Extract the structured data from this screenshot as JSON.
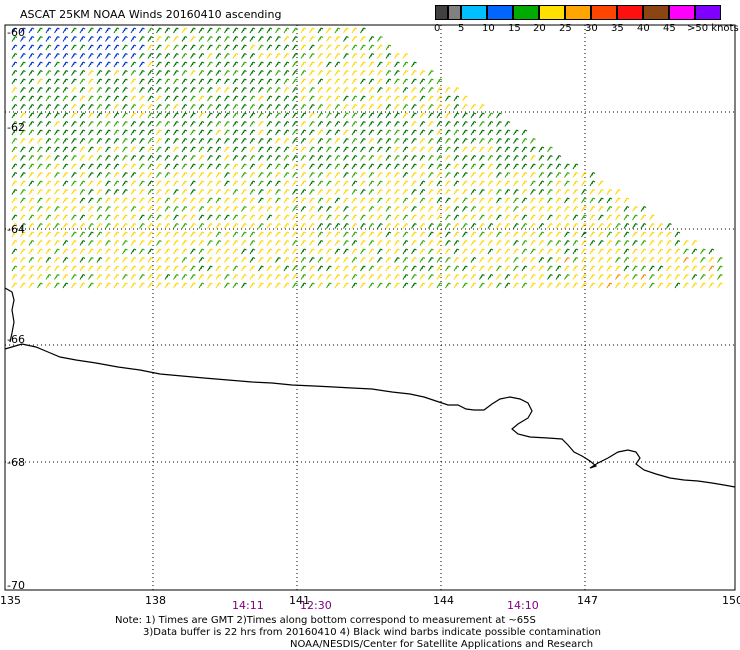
{
  "title": "ASCAT 25KM NOAA Winds 20160410 ascending",
  "legend": {
    "labels": [
      "0",
      "5",
      "10",
      "15",
      "20",
      "25",
      "30",
      "35",
      "40",
      "45",
      ">50 knots"
    ],
    "colors": [
      "#404040",
      "#808080",
      "#00bfff",
      "#0066ff",
      "#00aa00",
      "#ffe000",
      "#ffa500",
      "#ff4500",
      "#ff1010",
      "#8b4513",
      "#ff00ff",
      "#8000ff"
    ]
  },
  "map": {
    "lon_labels": [
      "135",
      "138",
      "141",
      "144",
      "147",
      "150"
    ],
    "lat_labels": [
      "-60",
      "-62",
      "-64",
      "-66",
      "-68",
      "-70"
    ],
    "time_labels": [
      "14:11",
      "12:30",
      "14:10"
    ]
  },
  "notes": {
    "line1": "Note: 1) Times are GMT 2)Times along bottom correspond to measurement at ~65S",
    "line2": "3)Data buffer is 22 hrs from 20160410 4) Black wind barbs indicate possible contamination",
    "line3": "NOAA/NESDIS/Center for Satellite Applications and Research"
  }
}
